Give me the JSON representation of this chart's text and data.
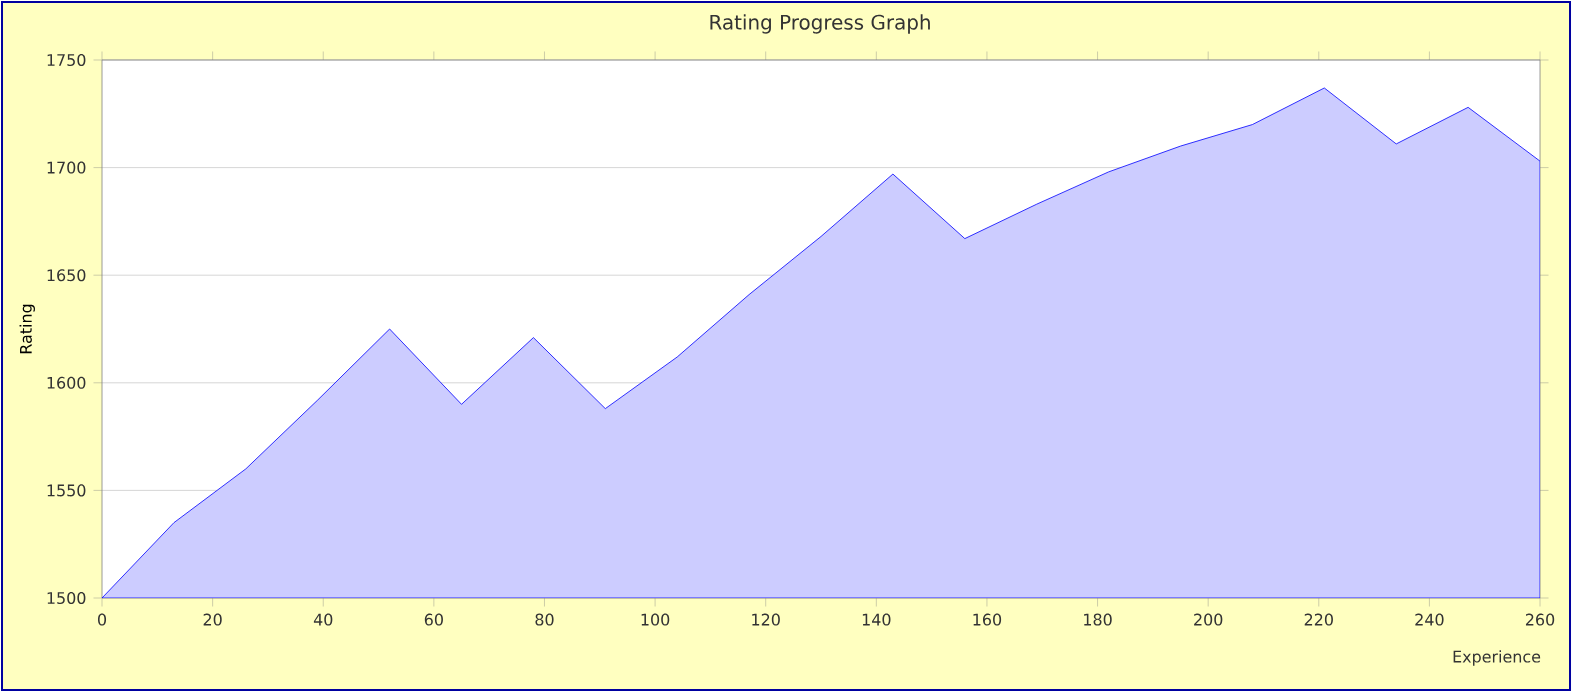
{
  "chart_data": {
    "type": "area",
    "title": "Rating Progress Graph",
    "xlabel": "Experience",
    "ylabel": "Rating",
    "x": [
      0,
      13,
      26,
      39,
      52,
      65,
      78,
      91,
      104,
      117,
      130,
      143,
      156,
      169,
      182,
      195,
      208,
      221,
      234,
      247,
      260
    ],
    "series": [
      {
        "color": "#0000ff",
        "values": [
          1500,
          1535,
          1560,
          1592,
          1625,
          1590,
          1621,
          1588,
          1612,
          1641,
          1668,
          1697,
          1667,
          1683,
          1698,
          1710,
          1720,
          1737,
          1711,
          1728,
          1703
        ]
      }
    ],
    "xlim": [
      0,
      260
    ],
    "xticks": [
      0,
      20,
      40,
      60,
      80,
      100,
      120,
      140,
      160,
      180,
      200,
      220,
      240,
      260
    ],
    "ylim": [
      1500,
      1750
    ],
    "yticks": [
      1500,
      1550,
      1600,
      1650,
      1700,
      1750
    ],
    "grid": "y"
  }
}
